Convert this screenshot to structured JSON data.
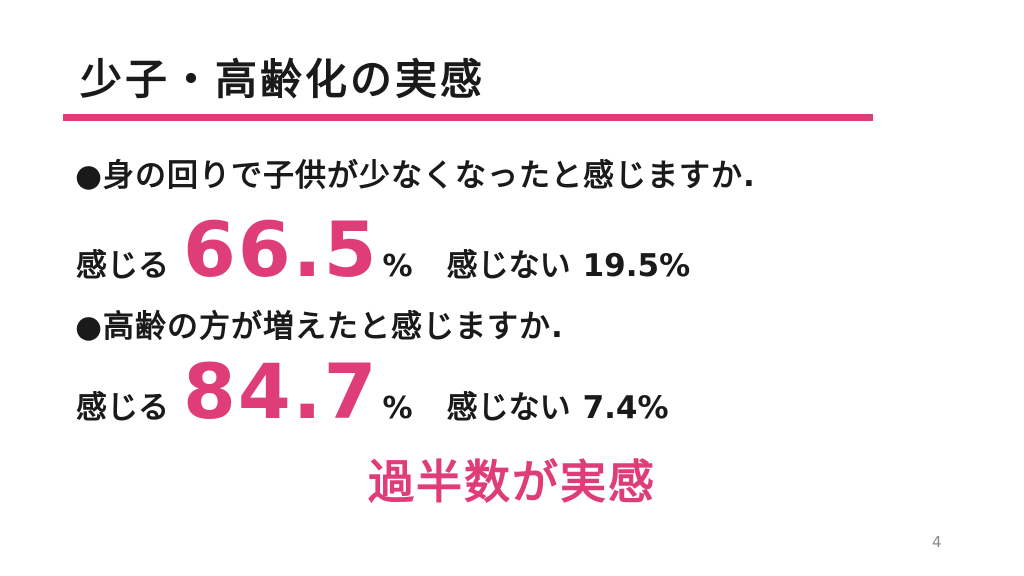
{
  "slide": {
    "title": "少子・高齢化の実感",
    "questions": [
      {
        "question": "●身の回りで子供が少なくなったと感じますか.",
        "feel_label": "感じる",
        "feel_value": "66.5",
        "feel_unit": "%",
        "not_feel_label": "感じない",
        "not_feel_value": "19.5%"
      },
      {
        "question": "●高齢の方が増えたと感じますか.",
        "feel_label": "感じる",
        "feel_value": "84.7",
        "feel_unit": "%",
        "not_feel_label": "感じない",
        "not_feel_value": "7.4%"
      }
    ],
    "conclusion": "過半数が実感",
    "page_number": "4"
  },
  "colors": {
    "accent": "#DF3D78",
    "text": "#1a1a1a",
    "page_number_gray": "#8a8a8a",
    "background": "#ffffff"
  }
}
